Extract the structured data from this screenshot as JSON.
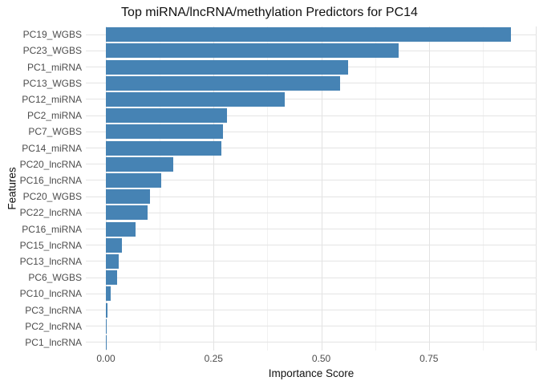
{
  "title": "Top miRNA/lncRNA/methylation Predictors for PC14",
  "chart_data": {
    "type": "bar",
    "orientation": "horizontal",
    "title": "Top miRNA/lncRNA/methylation Predictors for PC14",
    "xlabel": "Importance Score",
    "ylabel": "Features",
    "categories": [
      "PC19_WGBS",
      "PC23_WGBS",
      "PC1_miRNA",
      "PC13_WGBS",
      "PC12_miRNA",
      "PC2_miRNA",
      "PC7_WGBS",
      "PC14_miRNA",
      "PC20_lncRNA",
      "PC16_lncRNA",
      "PC20_WGBS",
      "PC22_lncRNA",
      "PC16_miRNA",
      "PC15_lncRNA",
      "PC13_lncRNA",
      "PC6_WGBS",
      "PC10_lncRNA",
      "PC3_lncRNA",
      "PC2_lncRNA",
      "PC1_lncRNA"
    ],
    "values": [
      0.94,
      0.68,
      0.562,
      0.544,
      0.415,
      0.281,
      0.272,
      0.269,
      0.157,
      0.128,
      0.103,
      0.096,
      0.069,
      0.038,
      0.03,
      0.026,
      0.012,
      0.003,
      0.002,
      0.001
    ],
    "xlim": [
      0,
      1.0
    ],
    "x_ticks": {
      "labels": [
        "0.00",
        "0.25",
        "0.50",
        "0.75"
      ],
      "values": [
        0,
        0.25,
        0.5,
        0.75
      ]
    },
    "x_minor_ticks": [
      0.125,
      0.375,
      0.625,
      0.875
    ],
    "x_unlabeled_major_ticks": [
      1.0
    ],
    "grid": true,
    "legend": false,
    "colors": {
      "bar": "#4683b4",
      "grid_major": "#e2e2e2",
      "grid_minor": "#f1f1f1",
      "axis_text": "#4d4d4d",
      "title_text": "#111111",
      "background": "#ffffff"
    }
  }
}
